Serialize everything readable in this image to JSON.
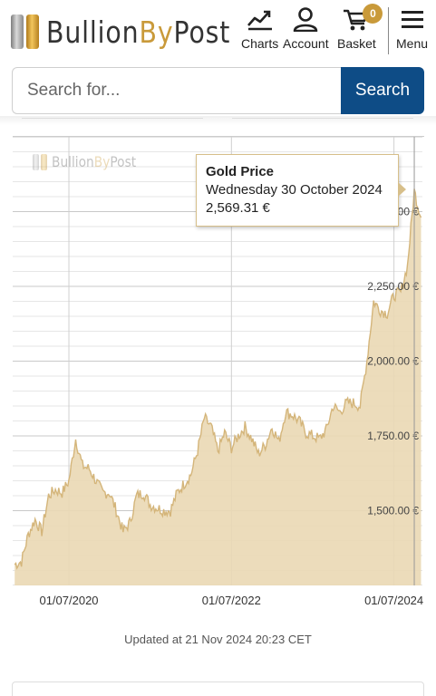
{
  "header": {
    "logo": {
      "part1": "Bullion",
      "part2": "By",
      "part3": "Post"
    },
    "nav": {
      "charts": "Charts",
      "account": "Account",
      "basket": "Basket",
      "basket_count": "0",
      "menu": "Menu"
    }
  },
  "search": {
    "placeholder": "Search for...",
    "button": "Search"
  },
  "chart": {
    "watermark": {
      "part1": "Bullion",
      "part2": "By",
      "part3": "Post"
    },
    "tooltip": {
      "title": "Gold Price",
      "date": "Wednesday 30 October 2024",
      "value": "2,569.31 €"
    },
    "colors": {
      "fill": "#ead8b4",
      "line": "#d4b57a",
      "grid": "#e6e6e6"
    }
  },
  "chart_data": {
    "type": "area",
    "title": "",
    "xlabel": "",
    "ylabel": "",
    "x_ticks": [
      "01/07/2020",
      "01/07/2022",
      "01/07/2024"
    ],
    "y_ticks": [
      "1,500.00 €",
      "1,750.00 €",
      "2,000.00 €",
      "2,250.00 €",
      "2,500.00 €"
    ],
    "y_tick_values": [
      1500,
      1750,
      2000,
      2250,
      2500
    ],
    "ylim": [
      1250,
      2750
    ],
    "series": [
      {
        "name": "Gold Price",
        "x": [
          "2019-11",
          "2019-12",
          "2020-01",
          "2020-02",
          "2020-03",
          "2020-04",
          "2020-05",
          "2020-06",
          "2020-07",
          "2020-08",
          "2020-09",
          "2020-10",
          "2020-11",
          "2020-12",
          "2021-01",
          "2021-02",
          "2021-03",
          "2021-04",
          "2021-05",
          "2021-06",
          "2021-07",
          "2021-08",
          "2021-09",
          "2021-10",
          "2021-11",
          "2021-12",
          "2022-01",
          "2022-02",
          "2022-03",
          "2022-04",
          "2022-05",
          "2022-06",
          "2022-07",
          "2022-08",
          "2022-09",
          "2022-10",
          "2022-11",
          "2022-12",
          "2023-01",
          "2023-02",
          "2023-03",
          "2023-04",
          "2023-05",
          "2023-06",
          "2023-07",
          "2023-08",
          "2023-09",
          "2023-10",
          "2023-11",
          "2023-12",
          "2024-01",
          "2024-02",
          "2024-03",
          "2024-04",
          "2024-05",
          "2024-06",
          "2024-07",
          "2024-08",
          "2024-09",
          "2024-10",
          "2024-11"
        ],
        "values": [
          1320,
          1330,
          1420,
          1470,
          1430,
          1550,
          1570,
          1560,
          1600,
          1740,
          1650,
          1640,
          1600,
          1560,
          1560,
          1500,
          1430,
          1460,
          1550,
          1560,
          1520,
          1510,
          1500,
          1500,
          1560,
          1590,
          1620,
          1700,
          1810,
          1780,
          1700,
          1760,
          1710,
          1750,
          1780,
          1740,
          1690,
          1720,
          1780,
          1730,
          1830,
          1820,
          1800,
          1760,
          1750,
          1740,
          1770,
          1850,
          1830,
          1860,
          1860,
          1850,
          2000,
          2200,
          2170,
          2160,
          2220,
          2230,
          2320,
          2569,
          2480
        ]
      }
    ]
  },
  "updated": "Updated at 21 Nov 2024 20:23 CET"
}
